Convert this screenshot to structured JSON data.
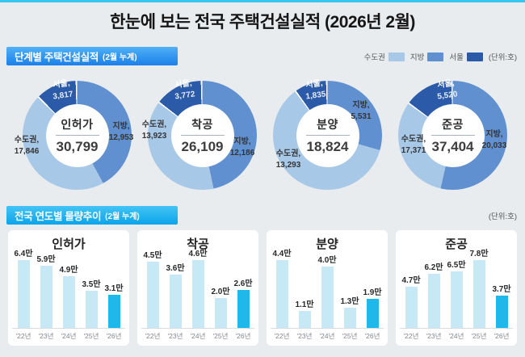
{
  "page": {
    "title": "한눈에 보는 전국 주택건설실적 (2026년 2월)"
  },
  "section_stage": {
    "title": "단계별 주택건설실적",
    "subtitle": "(2월 누계)",
    "unit_label": "(단위:호)"
  },
  "section_trend": {
    "title": "전국 연도별 물량추이",
    "subtitle": "(2월 누계)",
    "unit_label": "(단위:호)"
  },
  "legend": {
    "items": [
      {
        "label": "수도권",
        "color": "#a8c8e8"
      },
      {
        "label": "지방",
        "color": "#6090d0"
      },
      {
        "label": "서울",
        "color": "#2a5aa8"
      }
    ]
  },
  "colors": {
    "sudogwon": "#a8c8e8",
    "jibang": "#6090d0",
    "seoul": "#2a5aa8",
    "bar": "#c6e9f5",
    "bar_highlight": "#1eb9ea",
    "accent_line": "#35c6f1"
  },
  "chart_data": {
    "donuts": [
      {
        "type": "pie",
        "title": "인허가",
        "total": "30,799",
        "segments": [
          {
            "name": "지방,",
            "label": "12,953",
            "arc_value": 12953,
            "color": "#6090d0"
          },
          {
            "name": "수도권,",
            "label": "17,846",
            "arc_value": 14029,
            "color": "#a8c8e8"
          },
          {
            "name": "서울,",
            "label": "3,817",
            "arc_value": 3817,
            "color": "#2a5aa8"
          }
        ]
      },
      {
        "type": "pie",
        "title": "착공",
        "total": "26,109",
        "segments": [
          {
            "name": "지방,",
            "label": "12,186",
            "arc_value": 12186,
            "color": "#6090d0"
          },
          {
            "name": "수도권,",
            "label": "13,923",
            "arc_value": 10151,
            "color": "#a8c8e8"
          },
          {
            "name": "서울,",
            "label": "3,772",
            "arc_value": 3772,
            "color": "#2a5aa8"
          }
        ]
      },
      {
        "type": "pie",
        "title": "분양",
        "total": "18,824",
        "segments": [
          {
            "name": "지방,",
            "label": "5,531",
            "arc_value": 5531,
            "color": "#6090d0"
          },
          {
            "name": "수도권,",
            "label": "13,293",
            "arc_value": 11458,
            "color": "#a8c8e8"
          },
          {
            "name": "서울,",
            "label": "1,835",
            "arc_value": 1835,
            "color": "#2a5aa8"
          }
        ]
      },
      {
        "type": "pie",
        "title": "준공",
        "total": "37,404",
        "segments": [
          {
            "name": "지방,",
            "label": "20,033",
            "arc_value": 20033,
            "color": "#6090d0"
          },
          {
            "name": "수도권,",
            "label": "17,371",
            "arc_value": 11851,
            "color": "#a8c8e8"
          },
          {
            "name": "서울,",
            "label": "5,520",
            "arc_value": 5520,
            "color": "#2a5aa8"
          }
        ]
      }
    ],
    "bars": [
      {
        "type": "bar",
        "title": "인허가",
        "categories": [
          "'22년",
          "'23년",
          "'24년",
          "'25년",
          "'26년"
        ],
        "values": [
          6.4,
          5.9,
          4.9,
          3.5,
          3.1
        ],
        "labels": [
          "6.4만",
          "5.9만",
          "4.9만",
          "3.5만",
          "3.1만"
        ],
        "highlight_index": 4
      },
      {
        "type": "bar",
        "title": "착공",
        "categories": [
          "'22년",
          "'23년",
          "'24년",
          "'25년",
          "'26년"
        ],
        "values": [
          4.5,
          3.6,
          4.6,
          2.0,
          2.6
        ],
        "labels": [
          "4.5만",
          "3.6만",
          "4.6만",
          "2.0만",
          "2.6만"
        ],
        "highlight_index": 4
      },
      {
        "type": "bar",
        "title": "분양",
        "categories": [
          "'22년",
          "'23년",
          "'24년",
          "'25년",
          "'26년"
        ],
        "values": [
          4.4,
          1.1,
          4.0,
          1.3,
          1.9
        ],
        "labels": [
          "4.4만",
          "1.1만",
          "4.0만",
          "1.3만",
          "1.9만"
        ],
        "highlight_index": 4
      },
      {
        "type": "bar",
        "title": "준공",
        "categories": [
          "'22년",
          "'23년",
          "'24년",
          "'25년",
          "'26년"
        ],
        "values": [
          4.7,
          6.2,
          6.5,
          7.8,
          3.7
        ],
        "labels": [
          "4.7만",
          "6.2만",
          "6.5만",
          "7.8만",
          "3.7만"
        ],
        "highlight_index": 4
      }
    ]
  }
}
